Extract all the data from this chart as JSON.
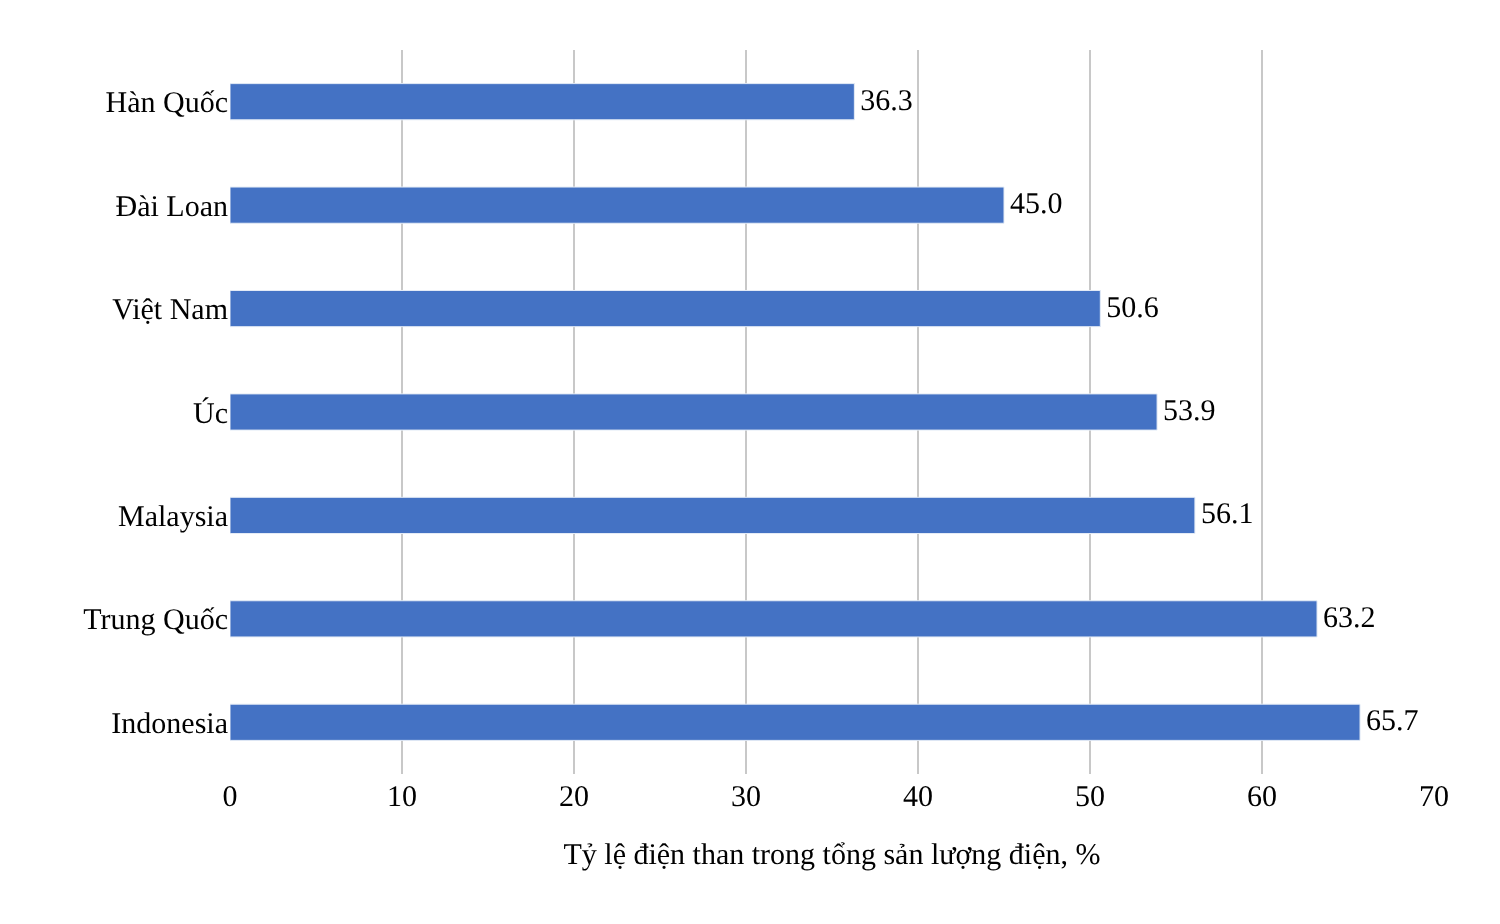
{
  "chart_data": {
    "type": "bar",
    "orientation": "horizontal",
    "categories": [
      "Hàn Quốc",
      "Đài Loan",
      "Việt Nam",
      "Úc",
      "Malaysia",
      "Trung Quốc",
      "Indonesia"
    ],
    "values": [
      36.3,
      45.0,
      50.6,
      53.9,
      56.1,
      63.2,
      65.7
    ],
    "value_labels": [
      "36.3",
      "45.0",
      "50.6",
      "53.9",
      "56.1",
      "63.2",
      "65.7"
    ],
    "color": "#4472c4",
    "xlabel": "Tỷ lệ điện than trong tổng sản lượng điện, %",
    "xlim": [
      0,
      70
    ],
    "xticks": [
      0,
      10,
      20,
      30,
      40,
      50,
      60,
      70
    ],
    "grid": "x",
    "legend": false
  }
}
